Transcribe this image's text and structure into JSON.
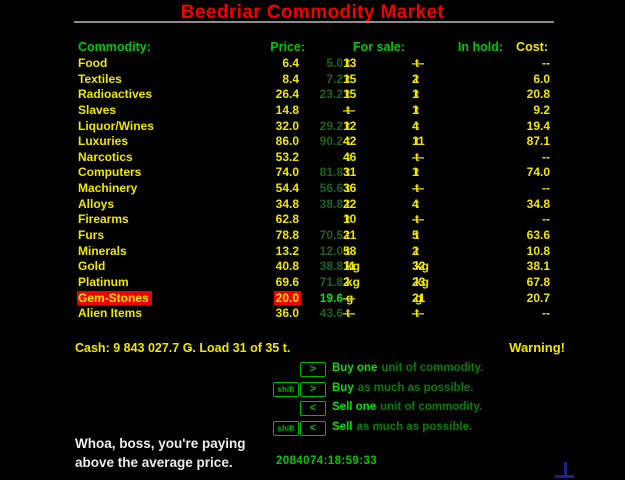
{
  "title": "Beedriar Commodity Market",
  "table": {
    "headers": {
      "commodity": "Commodity:",
      "price": "Price:",
      "for_sale": "For sale:",
      "in_hold": "In hold:",
      "cost": "Cost:"
    },
    "rows": [
      {
        "name": "Food",
        "price": "6.4",
        "avg": "5.0",
        "sale_qty": "13",
        "sale_unit": "t",
        "hold_qty": "—",
        "hold_unit": "t",
        "cost": "--",
        "selected": false
      },
      {
        "name": "Textiles",
        "price": "8.4",
        "avg": "7.2",
        "sale_qty": "15",
        "sale_unit": "t",
        "hold_qty": "2",
        "hold_unit": "t",
        "cost": "6.0",
        "selected": false
      },
      {
        "name": "Radioactives",
        "price": "26.4",
        "avg": "23.2",
        "sale_qty": "15",
        "sale_unit": "t",
        "hold_qty": "1",
        "hold_unit": "t",
        "cost": "20.8",
        "selected": false
      },
      {
        "name": "Slaves",
        "price": "14.8",
        "avg": "",
        "sale_qty": "—",
        "sale_unit": "t",
        "hold_qty": "1",
        "hold_unit": "t",
        "cost": "9.2",
        "selected": false
      },
      {
        "name": "Liquor/Wines",
        "price": "32.0",
        "avg": "29.2",
        "sale_qty": "12",
        "sale_unit": "t",
        "hold_qty": "4",
        "hold_unit": "t",
        "cost": "19.4",
        "selected": false
      },
      {
        "name": "Luxuries",
        "price": "86.0",
        "avg": "90.2",
        "sale_qty": "42",
        "sale_unit": "t",
        "hold_qty": "11",
        "hold_unit": "t",
        "cost": "87.1",
        "selected": false
      },
      {
        "name": "Narcotics",
        "price": "53.2",
        "avg": "",
        "sale_qty": "46",
        "sale_unit": "t",
        "hold_qty": "—",
        "hold_unit": "t",
        "cost": "--",
        "selected": false
      },
      {
        "name": "Computers",
        "price": "74.0",
        "avg": "81.8",
        "sale_qty": "31",
        "sale_unit": "t",
        "hold_qty": "1",
        "hold_unit": "t",
        "cost": "74.0",
        "selected": false
      },
      {
        "name": "Machinery",
        "price": "54.4",
        "avg": "56.6",
        "sale_qty": "36",
        "sale_unit": "t",
        "hold_qty": "—",
        "hold_unit": "t",
        "cost": "--",
        "selected": false
      },
      {
        "name": "Alloys",
        "price": "34.8",
        "avg": "38.8",
        "sale_qty": "22",
        "sale_unit": "t",
        "hold_qty": "4",
        "hold_unit": "t",
        "cost": "34.8",
        "selected": false
      },
      {
        "name": "Firearms",
        "price": "62.8",
        "avg": "",
        "sale_qty": "10",
        "sale_unit": "t",
        "hold_qty": "—",
        "hold_unit": "t",
        "cost": "--",
        "selected": false
      },
      {
        "name": "Furs",
        "price": "78.8",
        "avg": "70.5",
        "sale_qty": "21",
        "sale_unit": "t",
        "hold_qty": "5",
        "hold_unit": "t",
        "cost": "63.6",
        "selected": false
      },
      {
        "name": "Minerals",
        "price": "13.2",
        "avg": "12.0",
        "sale_qty": "58",
        "sale_unit": "t",
        "hold_qty": "2",
        "hold_unit": "t",
        "cost": "10.8",
        "selected": false
      },
      {
        "name": "Gold",
        "price": "40.8",
        "avg": "38.8",
        "sale_qty": "11",
        "sale_unit": "kg",
        "hold_qty": "32",
        "hold_unit": "kg",
        "cost": "38.1",
        "selected": false
      },
      {
        "name": "Platinum",
        "price": "69.6",
        "avg": "71.8",
        "sale_qty": "2",
        "sale_unit": "kg",
        "hold_qty": "23",
        "hold_unit": "kg",
        "cost": "67.8",
        "selected": false
      },
      {
        "name": "Gem-Stones",
        "price": "20.0",
        "avg": "19.6",
        "sale_qty": "—",
        "sale_unit": "g",
        "hold_qty": "21",
        "hold_unit": "g",
        "cost": "20.7",
        "selected": true
      },
      {
        "name": "Alien Items",
        "price": "36.0",
        "avg": "43.6",
        "sale_qty": "—",
        "sale_unit": "t",
        "hold_qty": "—",
        "hold_unit": "t",
        "cost": "--",
        "selected": false
      }
    ]
  },
  "status": {
    "cash": "Cash: 9 843 027.7 Ǥ. Load 31 of 35 t.",
    "warning": "Warning!"
  },
  "legend": [
    {
      "shift": false,
      "key": ">",
      "shift_label": "shift",
      "action": "Buy one",
      "rest": "unit of commodity."
    },
    {
      "shift": true,
      "key": ">",
      "shift_label": "shift",
      "action": "Buy",
      "rest": "as much as possible."
    },
    {
      "shift": false,
      "key": "<",
      "shift_label": "shift",
      "action": "Sell one",
      "rest": "unit of commodity."
    },
    {
      "shift": true,
      "key": "<",
      "shift_label": "shift",
      "action": "Sell",
      "rest": "as much as possible."
    }
  ],
  "message": {
    "line1": "Whoa, boss, you're paying",
    "line2": "above the average price."
  },
  "timestamp": "2084074:18:59:33",
  "colors": {
    "red_title": "#f20000",
    "yellow": "#f2e600",
    "green": "#00c800",
    "dark_green": "#1e6420",
    "bright_green": "#00e400",
    "dim_green": "#008200",
    "key_green": "#00b800",
    "highlight_red": "#ee0000",
    "white": "#ededed",
    "rule_gray": "#8c8c8c",
    "navy": "#20208c"
  }
}
